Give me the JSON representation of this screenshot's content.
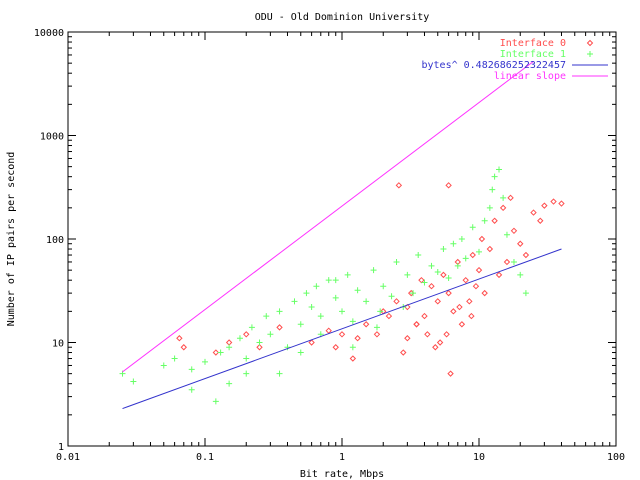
{
  "chart_data": {
    "type": "scatter",
    "title": "ODU - Old Dominion University",
    "xlabel": "Bit rate, Mbps",
    "ylabel": "Number of IP pairs per second",
    "x_scale": "log",
    "y_scale": "log",
    "xlim": [
      0.01,
      100
    ],
    "ylim": [
      1,
      10000
    ],
    "x_ticks": [
      0.01,
      0.1,
      1,
      10,
      100
    ],
    "x_tick_labels": [
      "0.01",
      "0.1",
      "1",
      "10",
      "100"
    ],
    "y_ticks": [
      1,
      10,
      100,
      1000,
      10000
    ],
    "y_tick_labels": [
      "1",
      "10",
      "100",
      "1000",
      "10000"
    ],
    "grid": false,
    "legend_position": "top-right",
    "series": [
      {
        "name": "Interface 0",
        "marker": "diamond",
        "color": "#ff4d4d",
        "points": [
          [
            0.065,
            11
          ],
          [
            0.07,
            9
          ],
          [
            0.12,
            8
          ],
          [
            0.15,
            10
          ],
          [
            0.2,
            12
          ],
          [
            0.25,
            9
          ],
          [
            0.35,
            14
          ],
          [
            0.6,
            10
          ],
          [
            0.8,
            13
          ],
          [
            1.0,
            12
          ],
          [
            1.3,
            11
          ],
          [
            1.5,
            15
          ],
          [
            1.8,
            12
          ],
          [
            2.0,
            20
          ],
          [
            2.2,
            18
          ],
          [
            2.5,
            25
          ],
          [
            2.6,
            330
          ],
          [
            3.0,
            22
          ],
          [
            3.2,
            30
          ],
          [
            3.5,
            15
          ],
          [
            3.8,
            40
          ],
          [
            4.0,
            18
          ],
          [
            4.2,
            12
          ],
          [
            4.5,
            35
          ],
          [
            5.0,
            25
          ],
          [
            5.2,
            10
          ],
          [
            5.5,
            45
          ],
          [
            6.0,
            30
          ],
          [
            6.2,
            5
          ],
          [
            6.5,
            20
          ],
          [
            7.0,
            60
          ],
          [
            7.5,
            15
          ],
          [
            8.0,
            40
          ],
          [
            8.5,
            25
          ],
          [
            9.0,
            70
          ],
          [
            9.5,
            35
          ],
          [
            10,
            50
          ],
          [
            10.5,
            100
          ],
          [
            11,
            30
          ],
          [
            12,
            80
          ],
          [
            13,
            150
          ],
          [
            14,
            45
          ],
          [
            15,
            200
          ],
          [
            16,
            60
          ],
          [
            17,
            250
          ],
          [
            18,
            120
          ],
          [
            20,
            90
          ],
          [
            22,
            70
          ],
          [
            25,
            180
          ],
          [
            28,
            150
          ],
          [
            30,
            210
          ],
          [
            35,
            230
          ],
          [
            40,
            220
          ],
          [
            6,
            330
          ],
          [
            3.5,
            15
          ],
          [
            2.8,
            8
          ],
          [
            4.8,
            9
          ],
          [
            3.0,
            11
          ],
          [
            1.2,
            7
          ],
          [
            0.9,
            9
          ],
          [
            5.8,
            12
          ],
          [
            7.2,
            22
          ],
          [
            8.8,
            18
          ]
        ]
      },
      {
        "name": "Interface 1",
        "marker": "plus",
        "color": "#66ff66",
        "points": [
          [
            0.025,
            5
          ],
          [
            0.03,
            4.2
          ],
          [
            0.05,
            6
          ],
          [
            0.06,
            7
          ],
          [
            0.08,
            5.5
          ],
          [
            0.1,
            6.5
          ],
          [
            0.12,
            2.7
          ],
          [
            0.13,
            8
          ],
          [
            0.15,
            9
          ],
          [
            0.18,
            11
          ],
          [
            0.2,
            7
          ],
          [
            0.22,
            14
          ],
          [
            0.25,
            10
          ],
          [
            0.28,
            18
          ],
          [
            0.3,
            12
          ],
          [
            0.35,
            20
          ],
          [
            0.4,
            9
          ],
          [
            0.45,
            25
          ],
          [
            0.5,
            15
          ],
          [
            0.55,
            30
          ],
          [
            0.6,
            22
          ],
          [
            0.65,
            35
          ],
          [
            0.7,
            18
          ],
          [
            0.8,
            40
          ],
          [
            0.9,
            27
          ],
          [
            1.0,
            20
          ],
          [
            1.1,
            45
          ],
          [
            1.2,
            16
          ],
          [
            1.3,
            32
          ],
          [
            1.5,
            25
          ],
          [
            1.7,
            50
          ],
          [
            1.9,
            20
          ],
          [
            2.0,
            35
          ],
          [
            2.3,
            28
          ],
          [
            2.5,
            60
          ],
          [
            2.8,
            22
          ],
          [
            3.0,
            45
          ],
          [
            3.3,
            30
          ],
          [
            3.6,
            70
          ],
          [
            4.0,
            38
          ],
          [
            4.5,
            55
          ],
          [
            5.0,
            48
          ],
          [
            5.5,
            80
          ],
          [
            6.0,
            42
          ],
          [
            6.5,
            90
          ],
          [
            7.0,
            55
          ],
          [
            7.5,
            100
          ],
          [
            8.0,
            65
          ],
          [
            9.0,
            130
          ],
          [
            10,
            75
          ],
          [
            11,
            150
          ],
          [
            12,
            200
          ],
          [
            12.5,
            300
          ],
          [
            13,
            400
          ],
          [
            14,
            470
          ],
          [
            15,
            250
          ],
          [
            16,
            110
          ],
          [
            18,
            60
          ],
          [
            20,
            45
          ],
          [
            22,
            30
          ],
          [
            0.35,
            5
          ],
          [
            0.5,
            8
          ],
          [
            0.7,
            12
          ],
          [
            0.9,
            40
          ],
          [
            1.2,
            9
          ],
          [
            1.8,
            14
          ],
          [
            0.15,
            4
          ],
          [
            0.08,
            3.5
          ],
          [
            0.2,
            5
          ]
        ]
      }
    ],
    "lines": [
      {
        "name": "bytes^ 0.482686252322457",
        "color": "#3333cc",
        "x": [
          0.025,
          40
        ],
        "y": [
          2.3,
          80
        ]
      },
      {
        "name": "linear slope",
        "color": "#ff33ff",
        "x": [
          0.025,
          25
        ],
        "y": [
          5.2,
          5200
        ]
      }
    ]
  }
}
